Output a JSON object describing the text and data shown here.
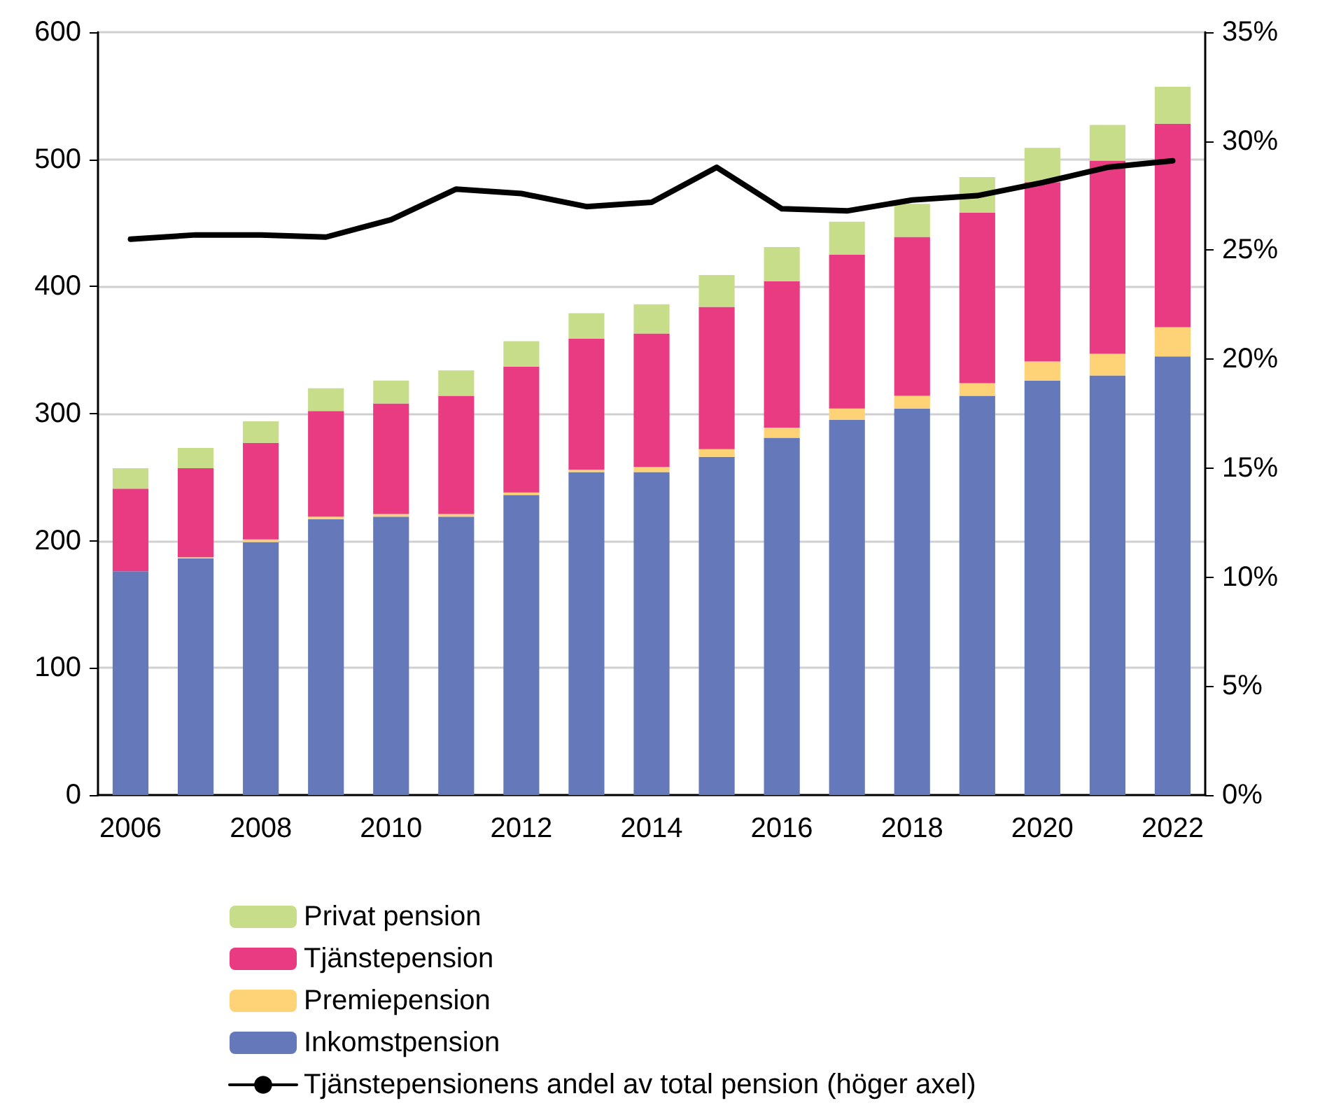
{
  "chart_data": {
    "type": "bar",
    "stacked": true,
    "categories": [
      "2006",
      null,
      "2008",
      null,
      "2010",
      null,
      "2012",
      null,
      "2014",
      null,
      "2016",
      null,
      "2018",
      null,
      "2020",
      null,
      "2022"
    ],
    "series": [
      {
        "name": "Inkomstpension",
        "color": "#6578b9",
        "values": [
          176,
          186,
          199,
          217,
          219,
          219,
          236,
          254,
          254,
          266,
          281,
          295,
          304,
          314,
          326,
          330,
          345
        ]
      },
      {
        "name": "Premiepension",
        "color": "#fed378",
        "values": [
          0,
          1,
          2,
          2,
          2,
          2,
          2,
          2,
          4,
          6,
          8,
          9,
          10,
          10,
          15,
          17,
          23
        ]
      },
      {
        "name": "Tjänstepension",
        "color": "#e83b82",
        "values": [
          65,
          70,
          76,
          83,
          87,
          93,
          99,
          103,
          105,
          112,
          115,
          121,
          125,
          134,
          141,
          152,
          160
        ]
      },
      {
        "name": "Privat pension",
        "color": "#c8dd8a",
        "values": [
          16,
          16,
          17,
          18,
          18,
          20,
          20,
          20,
          23,
          25,
          27,
          26,
          26,
          28,
          27,
          28,
          29
        ]
      },
      {
        "name": "Tjänstepensionens andel av total pension (höger axel)",
        "type": "line",
        "axis": "y2",
        "color": "#000000",
        "values": [
          25.5,
          25.7,
          25.7,
          25.6,
          26.4,
          27.8,
          27.6,
          27.0,
          27.2,
          28.8,
          26.9,
          26.8,
          27.3,
          27.5,
          28.1,
          28.8,
          29.1
        ]
      }
    ],
    "ylim": [
      0,
      600
    ],
    "yticks": [
      0,
      100,
      200,
      300,
      400,
      500,
      600
    ],
    "y2lim": [
      0,
      35
    ],
    "y2ticks": [
      {
        "value": 0,
        "label": "0%"
      },
      {
        "value": 5,
        "label": "5%"
      },
      {
        "value": 10,
        "label": "10%"
      },
      {
        "value": 15,
        "label": "15%"
      },
      {
        "value": 20,
        "label": "20%"
      },
      {
        "value": 25,
        "label": "25%"
      },
      {
        "value": 30,
        "label": "30%"
      },
      {
        "value": 35,
        "label": "35%"
      }
    ],
    "grid": "y",
    "legend": "bottom",
    "marker": "none",
    "line_style": "solid"
  }
}
